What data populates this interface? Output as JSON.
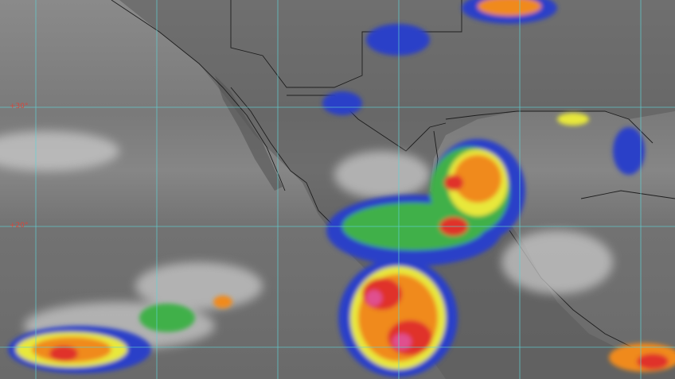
{
  "map": {
    "latitude_labels": [
      "+30°",
      "+20°"
    ],
    "colors": {
      "gridline": "#5fd3d6",
      "label": "#d8453a",
      "scale": [
        "#2a3fc8",
        "#3f8fe0",
        "#3fb04a",
        "#e8e83a",
        "#f08a1e",
        "#e0302a",
        "#e0508f"
      ]
    }
  }
}
